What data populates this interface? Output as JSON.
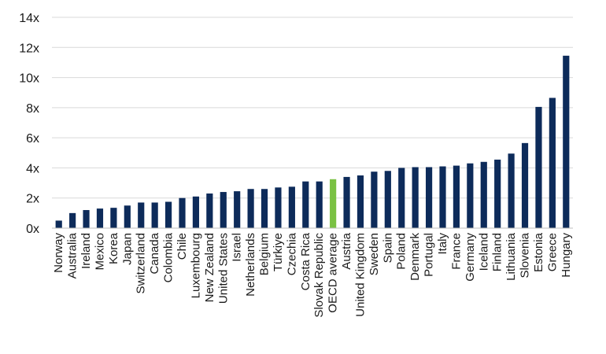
{
  "chart_data": {
    "type": "bar",
    "title": "",
    "xlabel": "",
    "ylabel": "",
    "ylim": [
      0,
      14
    ],
    "y_ticks": [
      {
        "value": 0,
        "label": "0x"
      },
      {
        "value": 2,
        "label": "2x"
      },
      {
        "value": 4,
        "label": "4x"
      },
      {
        "value": 6,
        "label": "6x"
      },
      {
        "value": 8,
        "label": "8x"
      },
      {
        "value": 10,
        "label": "10x"
      },
      {
        "value": 12,
        "label": "12x"
      },
      {
        "value": 14,
        "label": "14x"
      }
    ],
    "grid": "horizontal",
    "legend": "none",
    "colors": {
      "bar": "#0d2b5a",
      "highlight": "#7ac143"
    },
    "highlight_category": "OECD average",
    "categories": [
      "Norway",
      "Australia",
      "Ireland",
      "Mexico",
      "Korea",
      "Japan",
      "Switzerland",
      "Canada",
      "Colombia",
      "Chile",
      "Luxembourg",
      "New Zealand",
      "United States",
      "Israel",
      "Netherlands",
      "Belgium",
      "Türkiye",
      "Czechia",
      "Costa Rica",
      "Slovak Republic",
      "OECD average",
      "Austria",
      "United Kingdom",
      "Sweden",
      "Spain",
      "Poland",
      "Denmark",
      "Portugal",
      "Italy",
      "France",
      "Germany",
      "Iceland",
      "Finland",
      "Lithuania",
      "Slovenia",
      "Estonia",
      "Greece",
      "Hungary"
    ],
    "values": [
      0.5,
      1.0,
      1.2,
      1.3,
      1.35,
      1.5,
      1.7,
      1.7,
      1.75,
      2.0,
      2.1,
      2.3,
      2.4,
      2.45,
      2.6,
      2.6,
      2.7,
      2.75,
      3.1,
      3.1,
      3.25,
      3.4,
      3.5,
      3.75,
      3.8,
      4.0,
      4.05,
      4.05,
      4.1,
      4.15,
      4.3,
      4.4,
      4.55,
      4.95,
      5.65,
      8.05,
      8.65,
      11.45
    ]
  }
}
